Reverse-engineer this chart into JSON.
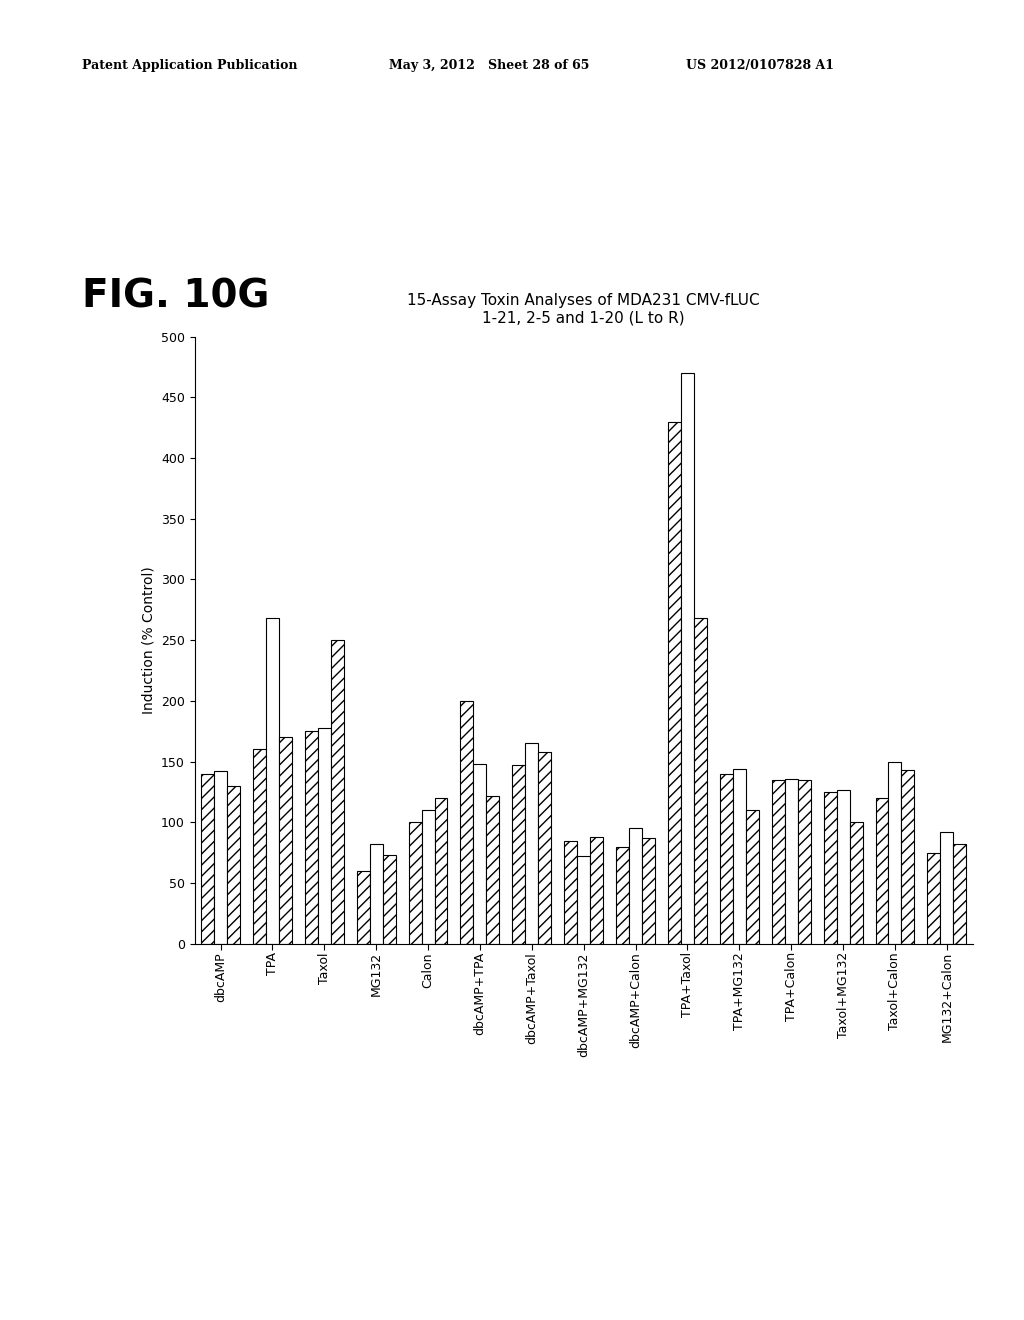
{
  "title_line1": "15-Assay Toxin Analyses of MDA231 CMV-fLUC",
  "title_line2": "1-21, 2-5 and 1-20 (L to R)",
  "ylabel": "Induction (% Control)",
  "fig_label": "FIG. 10G",
  "patent_left": "Patent Application Publication",
  "patent_mid": "May 3, 2012   Sheet 28 of 65",
  "patent_right": "US 2012/0107828 A1",
  "categories": [
    "dbcAMP",
    "TPA",
    "Taxol",
    "MG132",
    "Calon",
    "dbcAMP+TPA",
    "dbcAMP+Taxol",
    "dbcAMP+MG132",
    "dbcAMP+Calon",
    "TPA+Taxol",
    "TPA+MG132",
    "TPA+Calon",
    "Taxol+MG132",
    "Taxol+Calon",
    "MG132+Calon"
  ],
  "series_1_21": [
    140,
    160,
    175,
    60,
    100,
    200,
    147,
    85,
    80,
    430,
    140,
    135,
    125,
    120,
    75
  ],
  "series_2_5": [
    142,
    268,
    178,
    82,
    110,
    148,
    165,
    72,
    95,
    470,
    144,
    136,
    127,
    150,
    92
  ],
  "series_1_20": [
    130,
    170,
    250,
    73,
    120,
    122,
    158,
    88,
    87,
    268,
    110,
    135,
    100,
    143,
    82
  ],
  "ylim": [
    0,
    500
  ],
  "yticks": [
    0,
    50,
    100,
    150,
    200,
    250,
    300,
    350,
    400,
    450,
    500
  ],
  "background_color": "#ffffff",
  "title_fontsize": 11,
  "ylabel_fontsize": 10,
  "tick_fontsize": 9,
  "xlabel_fontsize": 9,
  "fig_label_fontsize": 28,
  "header_fontsize": 9,
  "bar_width": 0.25
}
